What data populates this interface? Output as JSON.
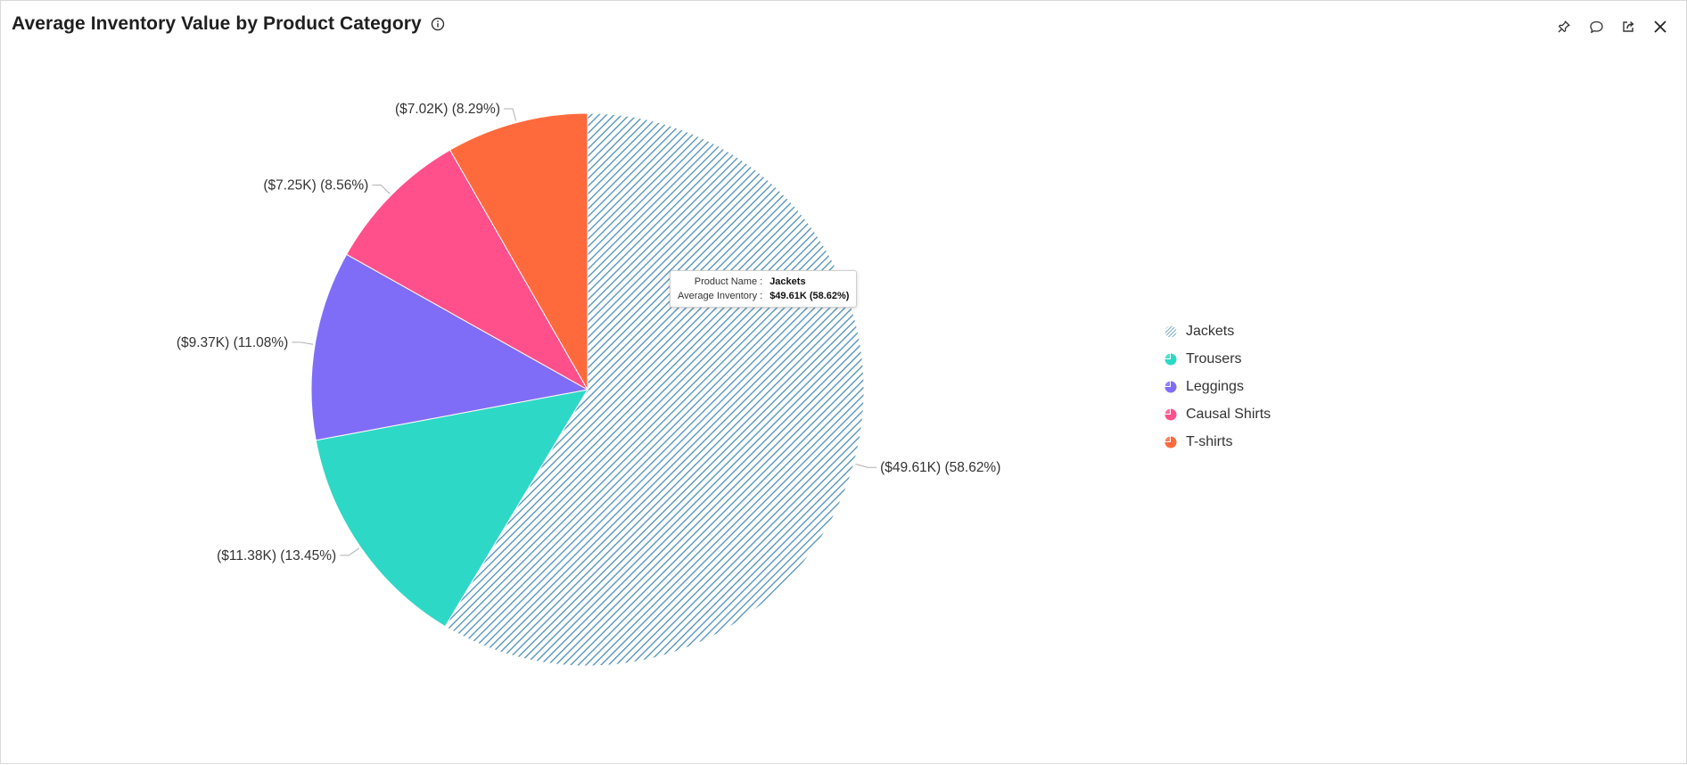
{
  "header": {
    "title": "Average Inventory Value by Product Category"
  },
  "toolbar": {
    "icons": [
      "pin-icon",
      "comment-icon",
      "export-icon",
      "close-icon"
    ]
  },
  "tooltip": {
    "label_name": "Product Name :",
    "value_name": "Jackets",
    "label_value": "Average Inventory :",
    "value_value": "$49.61K (58.62%)"
  },
  "chart_data": {
    "type": "pie",
    "title": "Average Inventory Value by Product Category",
    "series": [
      {
        "name": "Jackets",
        "value": 49.61,
        "percent": 58.62,
        "label": "($49.61K) (58.62%)",
        "color": "#5a9bbf",
        "pattern": "diagonal-stripes"
      },
      {
        "name": "Trousers",
        "value": 11.38,
        "percent": 13.45,
        "label": "($11.38K) (13.45%)",
        "color": "#2ed8c6"
      },
      {
        "name": "Leggings",
        "value": 9.37,
        "percent": 11.08,
        "label": "($9.37K) (11.08%)",
        "color": "#806df7"
      },
      {
        "name": "Causal Shirts",
        "value": 7.25,
        "percent": 8.56,
        "label": "($7.25K) (8.56%)",
        "color": "#ff508b"
      },
      {
        "name": "T-shirts",
        "value": 7.02,
        "percent": 8.29,
        "label": "($7.02K) (8.29%)",
        "color": "#ff6a3d"
      }
    ],
    "unit": "$K",
    "legend_position": "right",
    "start_angle": "top, clockwise"
  }
}
